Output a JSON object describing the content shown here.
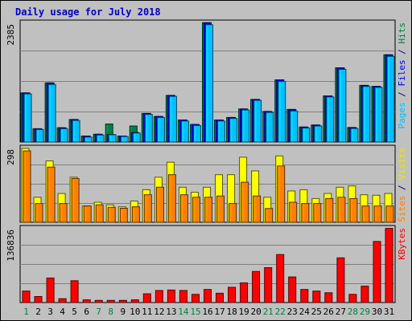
{
  "chart_data": {
    "type": "bar",
    "title": "Daily usage for July 2018",
    "categories": [
      "1",
      "2",
      "3",
      "4",
      "5",
      "6",
      "7",
      "8",
      "9",
      "10",
      "11",
      "12",
      "13",
      "14",
      "15",
      "16",
      "17",
      "18",
      "19",
      "20",
      "21",
      "22",
      "23",
      "24",
      "25",
      "26",
      "27",
      "28",
      "29",
      "30",
      "31"
    ],
    "weekend_days": [
      "1",
      "7",
      "8",
      "14",
      "15",
      "21",
      "22",
      "28",
      "29"
    ],
    "panels": [
      {
        "name": "hits-files-pages",
        "ymax_label": "2385",
        "ylim": [
          0,
          2385
        ],
        "grid": true,
        "side_labels": [
          {
            "text": "Pages",
            "color": "#00c0ff"
          },
          {
            "text": " / ",
            "color": "#000080"
          },
          {
            "text": "Files",
            "color": "#0000ff"
          },
          {
            "text": " / ",
            "color": "#000080"
          },
          {
            "text": "Hits",
            "color": "#008040"
          }
        ],
        "series": [
          {
            "name": "Hits",
            "color": "#008040",
            "values": [
              980,
              265,
              1180,
              285,
              450,
              120,
              155,
              360,
              120,
              320,
              570,
              510,
              930,
              440,
              350,
              2380,
              440,
              490,
              660,
              850,
              610,
              1240,
              650,
              300,
              340,
              920,
              1480,
              290,
              1130,
              1110,
              1740
            ]
          },
          {
            "name": "Files",
            "color": "#0000ff",
            "values": [
              980,
              265,
              1180,
              285,
              450,
              120,
              155,
              150,
              120,
              190,
              570,
              510,
              930,
              440,
              350,
              2380,
              440,
              490,
              660,
              850,
              610,
              1240,
              650,
              300,
              340,
              920,
              1480,
              290,
              1130,
              1110,
              1740
            ]
          },
          {
            "name": "Pages",
            "color": "#00c0ff",
            "values": [
              960,
              250,
              1150,
              265,
              430,
              100,
              140,
              145,
              110,
              180,
              550,
              490,
              910,
              420,
              330,
              2340,
              420,
              470,
              640,
              830,
              590,
              1210,
              620,
              280,
              320,
              900,
              1450,
              270,
              1110,
              1090,
              1710
            ]
          }
        ]
      },
      {
        "name": "visits-sites",
        "ymax_label": "298",
        "ylim": [
          0,
          298
        ],
        "grid": true,
        "side_labels": [
          {
            "text": "Sites",
            "color": "#ff8000"
          },
          {
            "text": " / ",
            "color": "#000080"
          },
          {
            "text": "Visits",
            "color": "#e6e600"
          }
        ],
        "series": [
          {
            "name": "Visits",
            "color": "#ffff00",
            "values": [
              295,
              100,
              245,
              115,
              180,
              65,
              80,
              70,
              62,
              85,
              130,
              180,
              240,
              140,
              120,
              140,
              190,
              190,
              260,
              205,
              100,
              265,
              125,
              130,
              95,
              115,
              140,
              145,
              110,
              108,
              115
            ]
          },
          {
            "name": "Sites",
            "color": "#ff8000",
            "values": [
              285,
              75,
              220,
              75,
              175,
              65,
              70,
              60,
              56,
              62,
              110,
              140,
              190,
              110,
              100,
              100,
              105,
              75,
              160,
              105,
              55,
              225,
              80,
              75,
              75,
              95,
              100,
              95,
              65,
              65,
              65
            ]
          }
        ]
      },
      {
        "name": "kbytes",
        "ymax_label": "136836",
        "ylim": [
          0,
          136836
        ],
        "grid": true,
        "side_labels": [
          {
            "text": "KBytes",
            "color": "#ff0000"
          }
        ],
        "series": [
          {
            "name": "KBytes",
            "color": "#ff0000",
            "values": [
              21000,
              11000,
              45000,
              7000,
              40000,
              5000,
              4000,
              4000,
              4000,
              5000,
              16000,
              22000,
              23000,
              22000,
              15000,
              24000,
              17000,
              28000,
              36000,
              57000,
              64000,
              88000,
              47000,
              24000,
              21000,
              18000,
              82000,
              15000,
              30000,
              112000,
              136000
            ]
          }
        ]
      }
    ]
  },
  "colors": {
    "background": "#c0c0c0",
    "plot_background": "#c0c0c0",
    "grid": "#808080",
    "title": "#0000cc",
    "weekday_label": "#000000",
    "weekend_label": "#008040"
  }
}
